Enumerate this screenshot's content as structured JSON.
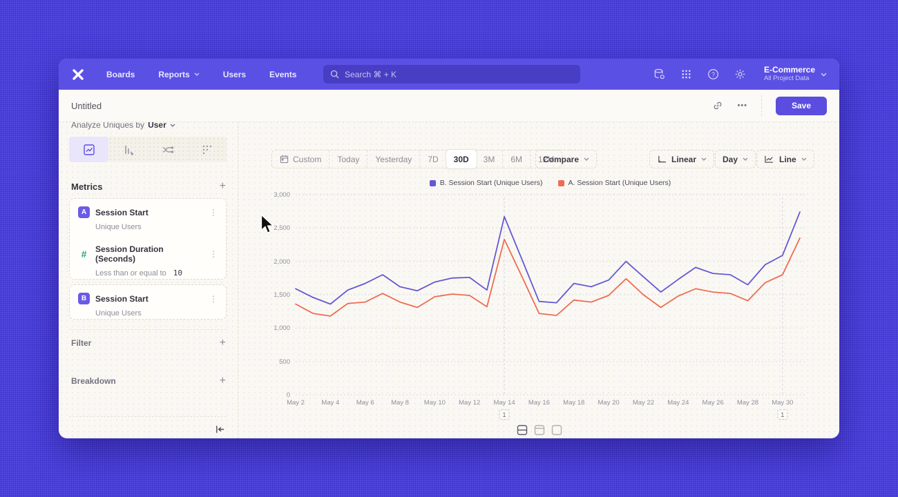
{
  "nav": {
    "items": [
      "Boards",
      "Reports",
      "Users",
      "Events"
    ],
    "search_placeholder": "Search   ⌘ + K",
    "project_name": "E-Commerce",
    "project_scope": "All Project Data"
  },
  "titlebar": {
    "title": "Untitled",
    "save": "Save",
    "more": "•••"
  },
  "builder": {
    "analyze_prefix": "Analyze Uniques by",
    "analyze_value": "User",
    "metrics_title": "Metrics",
    "add": "+",
    "rows": [
      {
        "badge": "A",
        "title": "Session Start",
        "sub": "Unique Users"
      },
      {
        "badge": "#",
        "title": "Session Duration (Seconds)",
        "sub": "Less than or equal to",
        "sub_value": "10"
      },
      {
        "badge": "B",
        "title": "Session Start",
        "sub": "Unique Users"
      }
    ],
    "filter": "Filter",
    "breakdown": "Breakdown",
    "kebab": "⋮"
  },
  "toolbar": {
    "ranges": [
      "Custom",
      "Today",
      "Yesterday",
      "7D",
      "30D",
      "3M",
      "6M",
      "12M"
    ],
    "selected": "30D",
    "compare": "Compare",
    "scale": "Linear",
    "granularity": "Day",
    "chart_type": "Line"
  },
  "chart_data": {
    "type": "line",
    "x": [
      "May 2",
      "May 3",
      "May 4",
      "May 5",
      "May 6",
      "May 7",
      "May 8",
      "May 9",
      "May 10",
      "May 11",
      "May 12",
      "May 13",
      "May 14",
      "May 15",
      "May 16",
      "May 17",
      "May 18",
      "May 19",
      "May 20",
      "May 21",
      "May 22",
      "May 23",
      "May 24",
      "May 25",
      "May 26",
      "May 27",
      "May 28",
      "May 29",
      "May 30",
      "May 31"
    ],
    "x_tick_every": 2,
    "ylim": [
      0,
      3000
    ],
    "yticks": [
      0,
      500,
      1000,
      1500,
      2000,
      2500,
      3000
    ],
    "grid": "horizontal-dotted",
    "legend_position": "top-center",
    "series": [
      {
        "name": "B. Session Start (Unique Users)",
        "color": "#6358d5",
        "values": [
          1590,
          1460,
          1360,
          1570,
          1670,
          1800,
          1620,
          1560,
          1690,
          1750,
          1760,
          1570,
          2670,
          2040,
          1400,
          1380,
          1670,
          1620,
          1720,
          2000,
          1770,
          1540,
          1730,
          1910,
          1820,
          1800,
          1650,
          1950,
          2090,
          2740
        ]
      },
      {
        "name": "A. Session Start (Unique Users)",
        "color": "#ee6c53",
        "values": [
          1360,
          1220,
          1180,
          1370,
          1390,
          1520,
          1390,
          1310,
          1470,
          1510,
          1490,
          1320,
          2330,
          1780,
          1220,
          1190,
          1420,
          1390,
          1490,
          1740,
          1500,
          1310,
          1480,
          1590,
          1540,
          1520,
          1410,
          1680,
          1800,
          2350
        ]
      }
    ],
    "annotations": [
      {
        "x_index": 12,
        "label": "1"
      },
      {
        "x_index": 28,
        "label": "1"
      }
    ]
  }
}
